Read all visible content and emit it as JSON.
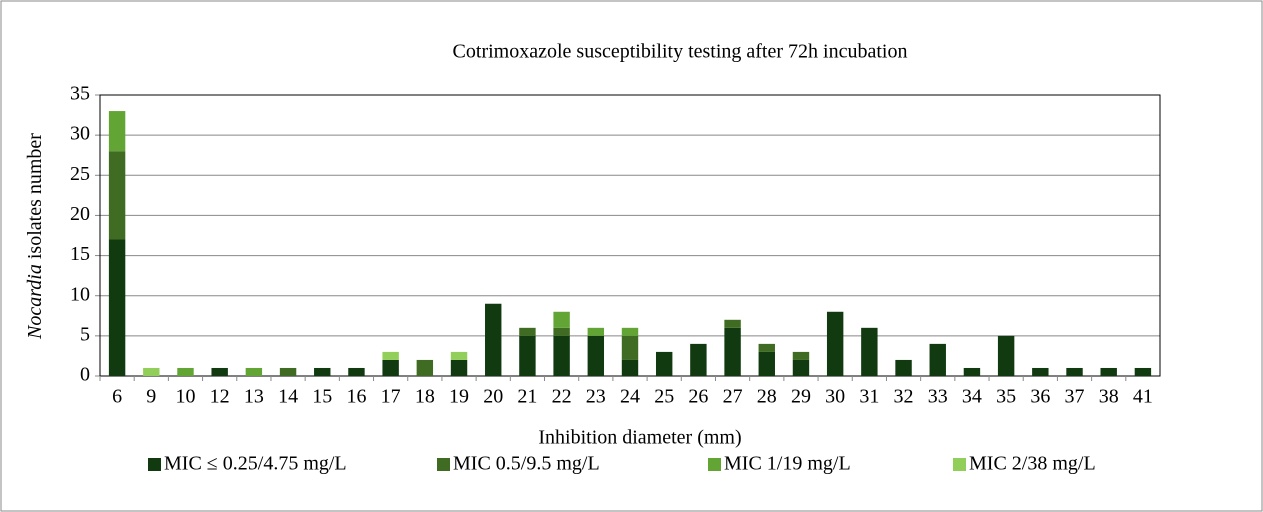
{
  "chart_data": {
    "type": "stacked_bar",
    "title": "Cotrimoxazole susceptibility testing after 72h incubation",
    "xlabel": "Inhibition diameter (mm)",
    "ylabel": {
      "italic": "Nocardia",
      "rest": " isolates number"
    },
    "categories": [
      "6",
      "9",
      "10",
      "12",
      "13",
      "14",
      "15",
      "16",
      "17",
      "18",
      "19",
      "20",
      "21",
      "22",
      "23",
      "24",
      "25",
      "26",
      "27",
      "28",
      "29",
      "30",
      "31",
      "32",
      "33",
      "34",
      "35",
      "36",
      "37",
      "38",
      "41"
    ],
    "series": [
      {
        "name": "MIC ≤ 0.25/4.75 mg/L",
        "color": "#113a10",
        "values": [
          17,
          0,
          0,
          1,
          0,
          0,
          1,
          1,
          2,
          0,
          2,
          9,
          5,
          5,
          5,
          2,
          3,
          4,
          6,
          3,
          2,
          8,
          6,
          2,
          4,
          1,
          5,
          1,
          1,
          1,
          1
        ]
      },
      {
        "name": "MIC 0.5/9.5 mg/L",
        "color": "#3f6b22",
        "values": [
          11,
          0,
          0,
          0,
          0,
          1,
          0,
          0,
          0,
          2,
          0,
          0,
          1,
          1,
          0,
          3,
          0,
          0,
          1,
          1,
          1,
          0,
          0,
          0,
          0,
          0,
          0,
          0,
          0,
          0,
          0
        ]
      },
      {
        "name": "MIC 1/19 mg/L",
        "color": "#63a535",
        "values": [
          5,
          0,
          1,
          0,
          1,
          0,
          0,
          0,
          0,
          0,
          0,
          0,
          0,
          2,
          1,
          1,
          0,
          0,
          0,
          0,
          0,
          0,
          0,
          0,
          0,
          0,
          0,
          0,
          0,
          0,
          0
        ]
      },
      {
        "name": "MIC 2/38 mg/L",
        "color": "#92cf5a",
        "values": [
          0,
          1,
          0,
          0,
          0,
          0,
          0,
          0,
          1,
          0,
          1,
          0,
          0,
          0,
          0,
          0,
          0,
          0,
          0,
          0,
          0,
          0,
          0,
          0,
          0,
          0,
          0,
          0,
          0,
          0,
          0
        ]
      }
    ],
    "ylim": [
      0,
      35
    ],
    "yticks": [
      0,
      5,
      10,
      15,
      20,
      25,
      30,
      35
    ],
    "grid": true
  }
}
